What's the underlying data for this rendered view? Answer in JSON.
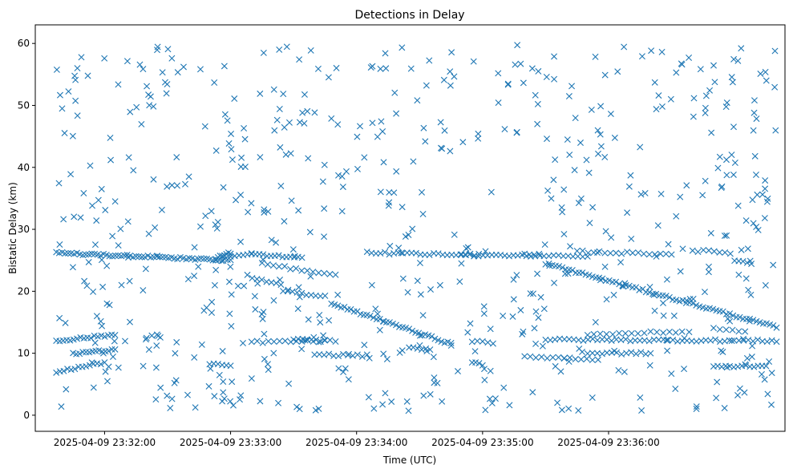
{
  "chart_data": {
    "type": "scatter",
    "title": "Detections in Delay",
    "xlabel": "Time (UTC)",
    "ylabel": "Bistatic Delay (km)",
    "marker": "x",
    "color": "#1f77b4",
    "xlim": [
      "2025-04-09 23:31:27",
      "2025-04-09 23:37:24"
    ],
    "ylim": [
      -2.6,
      63
    ],
    "xticks": [
      "2025-04-09 23:32:00",
      "2025-04-09 23:33:00",
      "2025-04-09 23:34:00",
      "2025-04-09 23:35:00",
      "2025-04-09 23:36:00"
    ],
    "yticks": [
      0,
      10,
      20,
      30,
      40,
      50,
      60
    ],
    "series": [
      {
        "tracks": [
          {
            "start": "2025-04-09 23:31:37",
            "end": "2025-04-09 23:33:00",
            "y_start": 26.2,
            "y_end": 25.0,
            "count": 60
          },
          {
            "start": "2025-04-09 23:32:53",
            "end": "2025-04-09 23:33:00",
            "y_start": 25.3,
            "y_end": 26.2,
            "count": 8
          },
          {
            "start": "2025-04-09 23:33:00",
            "end": "2025-04-09 23:33:10",
            "y_start": 25.7,
            "y_end": 26.0,
            "count": 6
          },
          {
            "start": "2025-04-09 23:33:10",
            "end": "2025-04-09 23:33:34",
            "y_start": 26.0,
            "y_end": 25.5,
            "count": 14
          },
          {
            "start": "2025-04-09 23:33:15",
            "end": "2025-04-09 23:33:50",
            "y_start": 24.5,
            "y_end": 22.5,
            "count": 14
          },
          {
            "start": "2025-04-09 23:33:08",
            "end": "2025-04-09 23:33:24",
            "y_start": 22.5,
            "y_end": 21.0,
            "count": 8
          },
          {
            "start": "2025-04-09 23:33:25",
            "end": "2025-04-09 23:33:45",
            "y_start": 20.0,
            "y_end": 19.2,
            "count": 10
          },
          {
            "start": "2025-04-09 23:33:48",
            "end": "2025-04-09 23:34:45",
            "y_start": 18.0,
            "y_end": 11.5,
            "count": 38
          },
          {
            "start": "2025-04-09 23:34:05",
            "end": "2025-04-09 23:34:58",
            "y_start": 26.2,
            "y_end": 25.8,
            "count": 26
          },
          {
            "start": "2025-04-09 23:34:50",
            "end": "2025-04-09 23:35:25",
            "y_start": 26.0,
            "y_end": 25.7,
            "count": 18
          },
          {
            "start": "2025-04-09 23:35:20",
            "end": "2025-04-09 23:35:50",
            "y_start": 26.0,
            "y_end": 25.5,
            "count": 14
          },
          {
            "start": "2025-04-09 23:35:30",
            "end": "2025-04-09 23:37:20",
            "y_start": 24.5,
            "y_end": 14.2,
            "count": 70
          },
          {
            "start": "2025-04-09 23:35:45",
            "end": "2025-04-09 23:36:30",
            "y_start": 26.4,
            "y_end": 26.0,
            "count": 18
          },
          {
            "start": "2025-04-09 23:36:40",
            "end": "2025-04-09 23:36:58",
            "y_start": 26.6,
            "y_end": 26.2,
            "count": 8
          },
          {
            "start": "2025-04-09 23:37:00",
            "end": "2025-04-09 23:37:08",
            "y_start": 25.0,
            "y_end": 24.5,
            "count": 5
          },
          {
            "start": "2025-04-09 23:31:37",
            "end": "2025-04-09 23:32:05",
            "y_start": 12.0,
            "y_end": 13.0,
            "count": 18
          },
          {
            "start": "2025-04-09 23:31:45",
            "end": "2025-04-09 23:32:05",
            "y_start": 10.0,
            "y_end": 10.5,
            "count": 14
          },
          {
            "start": "2025-04-09 23:31:37",
            "end": "2025-04-09 23:32:00",
            "y_start": 7.0,
            "y_end": 8.5,
            "count": 14
          },
          {
            "start": "2025-04-09 23:32:20",
            "end": "2025-04-09 23:32:25",
            "y_start": 12.5,
            "y_end": 13.0,
            "count": 3
          },
          {
            "start": "2025-04-09 23:32:50",
            "end": "2025-04-09 23:33:00",
            "y_start": 8.2,
            "y_end": 8.0,
            "count": 6
          },
          {
            "start": "2025-04-09 23:33:10",
            "end": "2025-04-09 23:33:50",
            "y_start": 11.8,
            "y_end": 12.0,
            "count": 16
          },
          {
            "start": "2025-04-09 23:33:30",
            "end": "2025-04-09 23:33:45",
            "y_start": 12.2,
            "y_end": 12.0,
            "count": 8
          },
          {
            "start": "2025-04-09 23:33:40",
            "end": "2025-04-09 23:34:05",
            "y_start": 9.8,
            "y_end": 9.6,
            "count": 12
          },
          {
            "start": "2025-04-09 23:34:25",
            "end": "2025-04-09 23:34:35",
            "y_start": 11.0,
            "y_end": 10.5,
            "count": 6
          },
          {
            "start": "2025-04-09 23:34:55",
            "end": "2025-04-09 23:35:05",
            "y_start": 12.0,
            "y_end": 11.5,
            "count": 5
          },
          {
            "start": "2025-04-09 23:34:55",
            "end": "2025-04-09 23:35:00",
            "y_start": 8.5,
            "y_end": 8.2,
            "count": 4
          },
          {
            "start": "2025-04-09 23:35:20",
            "end": "2025-04-09 23:35:55",
            "y_start": 9.5,
            "y_end": 9.0,
            "count": 14
          },
          {
            "start": "2025-04-09 23:35:30",
            "end": "2025-04-09 23:37:20",
            "y_start": 12.2,
            "y_end": 12.0,
            "count": 50
          },
          {
            "start": "2025-04-09 23:35:50",
            "end": "2025-04-09 23:36:35",
            "y_start": 13.0,
            "y_end": 13.5,
            "count": 16
          },
          {
            "start": "2025-04-09 23:35:50",
            "end": "2025-04-09 23:36:20",
            "y_start": 10.0,
            "y_end": 10.0,
            "count": 14
          },
          {
            "start": "2025-04-09 23:36:50",
            "end": "2025-04-09 23:37:05",
            "y_start": 14.0,
            "y_end": 13.5,
            "count": 6
          },
          {
            "start": "2025-04-09 23:36:50",
            "end": "2025-04-09 23:37:15",
            "y_start": 7.8,
            "y_end": 8.0,
            "count": 14
          }
        ],
        "clutter": {
          "start": "2025-04-09 23:31:37",
          "end": "2025-04-09 23:37:20",
          "y_min": 0.5,
          "y_max": 60,
          "count": 640
        }
      }
    ]
  }
}
